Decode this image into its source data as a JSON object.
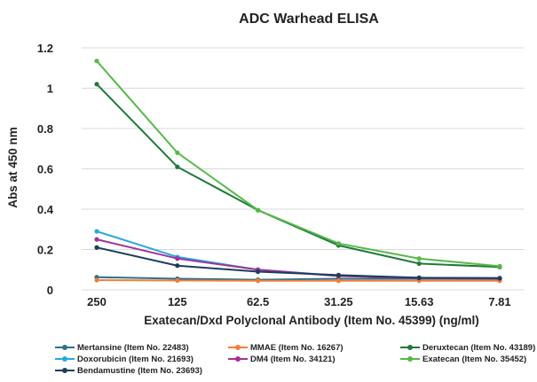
{
  "chart_data": {
    "type": "line",
    "title": "ADC Warhead ELISA",
    "xlabel": "Exatecan/Dxd Polyclonal Antibody (Item No. 45399) (ng/ml)",
    "ylabel": "Abs at 450 nm",
    "categories": [
      "250",
      "125",
      "62.5",
      "31.25",
      "15.63",
      "7.81"
    ],
    "yticks": [
      "0",
      "0.2",
      "0.4",
      "0.6",
      "0.8",
      "1",
      "1.2"
    ],
    "ylim": [
      0,
      1.2
    ],
    "grid": true,
    "legend_position": "bottom",
    "series": [
      {
        "name": "Mertansine (Item No. 22483)",
        "color": "#2e6f8e",
        "values": [
          0.063,
          0.055,
          0.05,
          0.055,
          0.055,
          0.053
        ]
      },
      {
        "name": "MMAE (Item No. 16267)",
        "color": "#f07f34",
        "values": [
          0.048,
          0.046,
          0.045,
          0.045,
          0.045,
          0.045
        ]
      },
      {
        "name": "Deruxtecan (Item No. 43189)",
        "color": "#1f7a3a",
        "values": [
          1.02,
          0.61,
          0.395,
          0.22,
          0.13,
          0.113
        ]
      },
      {
        "name": "Doxorubicin (Item No. 21693)",
        "color": "#29a8dd",
        "values": [
          0.29,
          0.163,
          0.1,
          0.07,
          0.06,
          0.058
        ]
      },
      {
        "name": "DM4 (Item No. 34121)",
        "color": "#a0319a",
        "values": [
          0.25,
          0.155,
          0.1,
          0.068,
          0.058,
          0.056
        ]
      },
      {
        "name": "Exatecan (Item No. 35452)",
        "color": "#56b947",
        "values": [
          1.135,
          0.68,
          0.395,
          0.23,
          0.155,
          0.117
        ]
      },
      {
        "name": "Bendamustine (Item No. 23693)",
        "color": "#1c3d5a",
        "values": [
          0.21,
          0.12,
          0.09,
          0.073,
          0.06,
          0.058
        ]
      }
    ]
  }
}
